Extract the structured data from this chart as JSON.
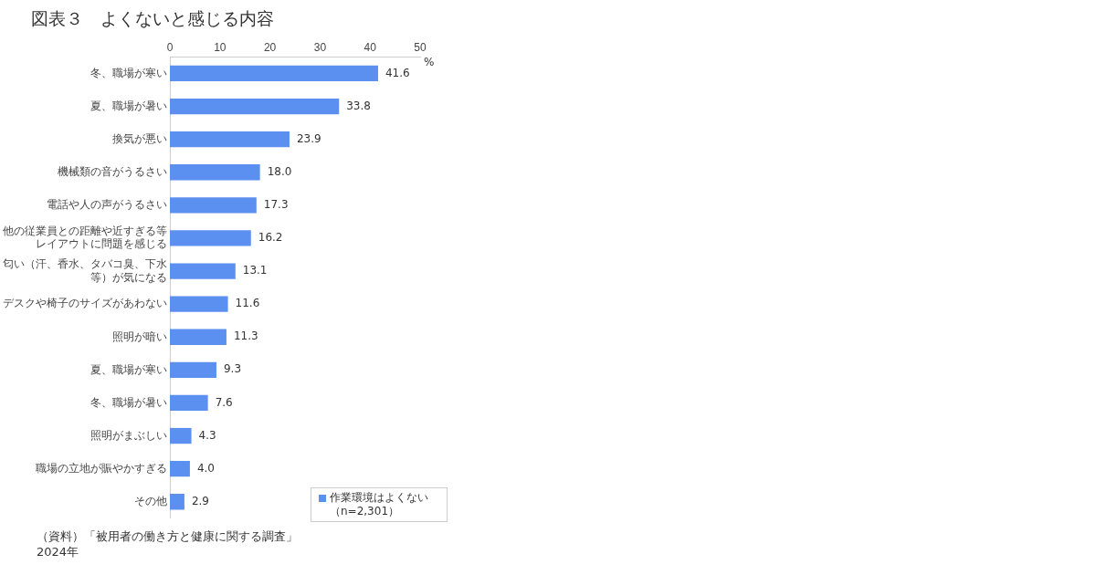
{
  "chart_data": {
    "type": "bar",
    "orientation": "horizontal",
    "title": "図表３　よくないと感じる内容",
    "categories": [
      "冬、職場が寒い",
      "夏、職場が暑い",
      "換気が悪い",
      "機械類の音がうるさい",
      "電話や人の声がうるさい",
      "他の従業員との距離や近すぎる等レイアウトに問題を感じる",
      "匂い（汗、香水、タバコ臭、下水等）が気になる",
      "デスクや椅子のサイズがあわない",
      "照明が暗い",
      "夏、職場が寒い",
      "冬、職場が暑い",
      "照明がまぶしい",
      "職場の立地が賑やかすぎる",
      "その他"
    ],
    "series": [
      {
        "name": "作業環境はよくない（n=2,301）",
        "color": "#5b8ff0",
        "values": [
          41.6,
          33.8,
          23.9,
          18.0,
          17.3,
          16.2,
          13.1,
          11.6,
          11.3,
          9.3,
          7.6,
          4.3,
          4.0,
          2.9
        ]
      }
    ],
    "value_labels": [
      "41.6",
      "33.8",
      "23.9",
      "18.0",
      "17.3",
      "16.2",
      "13.1",
      "11.6",
      "11.3",
      "9.3",
      "7.6",
      "4.3",
      "4.0",
      "2.9"
    ],
    "xlabel": "%",
    "xlim": [
      0,
      50
    ],
    "xticks": [
      0,
      10,
      20,
      30,
      40,
      50
    ],
    "grid": false,
    "legend": "bottom right",
    "annotations": [
      "（資料）「被用者の働き方と健康に関する調査」\n2024年"
    ]
  }
}
